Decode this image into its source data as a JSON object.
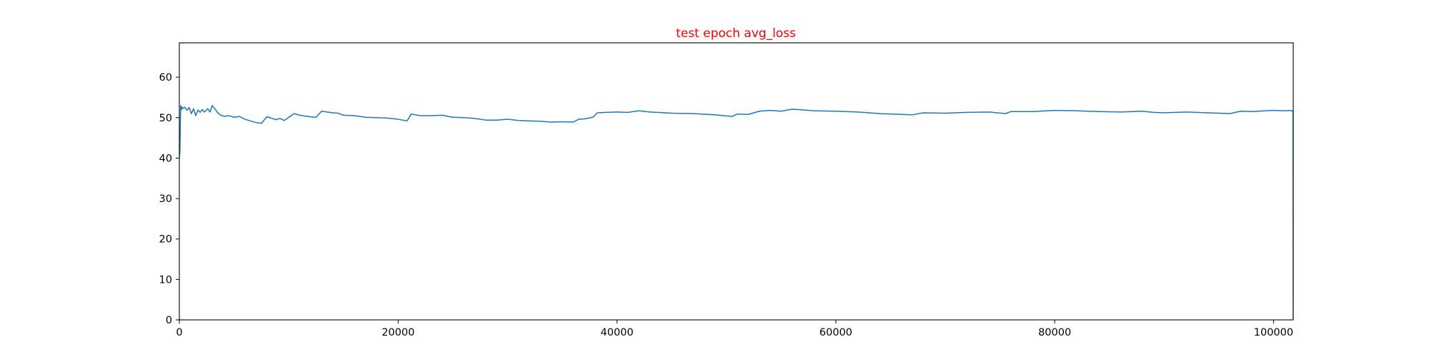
{
  "colors": {
    "title": "#ff0000",
    "series": "#1f77b4",
    "axes": "#000000",
    "background": "#ffffff"
  },
  "chart_data": {
    "type": "line",
    "title": "test epoch avg_loss",
    "xlabel": "",
    "ylabel": "",
    "xlim": [
      0,
      101800
    ],
    "ylim": [
      0,
      68.5
    ],
    "grid": false,
    "legend": "none",
    "x_ticks": [
      {
        "value": 0,
        "label": "0"
      },
      {
        "value": 20000,
        "label": "20000"
      },
      {
        "value": 40000,
        "label": "40000"
      },
      {
        "value": 60000,
        "label": "60000"
      },
      {
        "value": 80000,
        "label": "80000"
      },
      {
        "value": 100000,
        "label": "100000"
      }
    ],
    "y_ticks": [
      {
        "value": 0,
        "label": "0"
      },
      {
        "value": 10,
        "label": "10"
      },
      {
        "value": 20,
        "label": "20"
      },
      {
        "value": 30,
        "label": "30"
      },
      {
        "value": 40,
        "label": "40"
      },
      {
        "value": 50,
        "label": "50"
      },
      {
        "value": 60,
        "label": "60"
      }
    ],
    "series": [
      {
        "x": [
          0,
          50,
          120,
          200,
          260,
          350,
          500,
          700,
          900,
          1100,
          1300,
          1500,
          1700,
          1900,
          2100,
          2300,
          2600,
          2800,
          3000,
          3300,
          3500,
          3800,
          4100,
          4500,
          5000,
          5500,
          6000,
          6500,
          7000,
          7500,
          8000,
          8400,
          8800,
          9200,
          9600,
          10000,
          10500,
          11000,
          11500,
          12000,
          12500,
          13000,
          13500,
          14000,
          14500,
          15000,
          16000,
          17000,
          18000,
          19000,
          20000,
          20800,
          21200,
          22000,
          23000,
          24000,
          25000,
          26000,
          27000,
          28000,
          29000,
          30000,
          31000,
          32000,
          33000,
          34000,
          35000,
          36000,
          36500,
          37000,
          37800,
          38200,
          39000,
          40000,
          41000,
          42000,
          43000,
          45000,
          47000,
          49000,
          50500,
          51000,
          52000,
          53000,
          54000,
          55000,
          56000,
          57000,
          58000,
          60000,
          62000,
          64000,
          66000,
          67000,
          68000,
          70000,
          72000,
          74000,
          75500,
          76000,
          78000,
          80000,
          82000,
          84000,
          86000,
          88000,
          89000,
          90000,
          92000,
          94000,
          95000,
          96000,
          97000,
          98000,
          100000,
          101000,
          101500,
          101780,
          101800
        ],
        "values": [
          40.2,
          41.5,
          53.0,
          52.0,
          52.6,
          52.3,
          52.6,
          51.8,
          52.5,
          51.0,
          52.2,
          50.5,
          51.9,
          51.3,
          52.0,
          51.4,
          52.2,
          51.4,
          53.0,
          52.0,
          51.2,
          50.6,
          50.3,
          50.5,
          50.1,
          50.3,
          49.6,
          49.2,
          48.8,
          48.6,
          50.2,
          49.9,
          49.5,
          49.8,
          49.3,
          50.1,
          51.0,
          50.6,
          50.4,
          50.2,
          50.1,
          51.6,
          51.4,
          51.2,
          51.1,
          50.6,
          50.5,
          50.1,
          50.0,
          49.9,
          49.6,
          49.2,
          50.9,
          50.5,
          50.5,
          50.6,
          50.1,
          50.0,
          49.8,
          49.4,
          49.4,
          49.6,
          49.3,
          49.2,
          49.1,
          48.9,
          49.0,
          48.9,
          49.6,
          49.7,
          50.1,
          51.2,
          51.3,
          51.4,
          51.3,
          51.7,
          51.4,
          51.1,
          51.0,
          50.7,
          50.3,
          50.9,
          50.8,
          51.6,
          51.8,
          51.6,
          52.1,
          51.9,
          51.7,
          51.6,
          51.4,
          51.0,
          50.8,
          50.7,
          51.2,
          51.1,
          51.3,
          51.4,
          51.0,
          51.5,
          51.5,
          51.8,
          51.7,
          51.5,
          51.4,
          51.6,
          51.3,
          51.2,
          51.4,
          51.2,
          51.1,
          51.0,
          51.6,
          51.5,
          51.8,
          51.7,
          51.8,
          51.6,
          0.2
        ]
      }
    ]
  }
}
